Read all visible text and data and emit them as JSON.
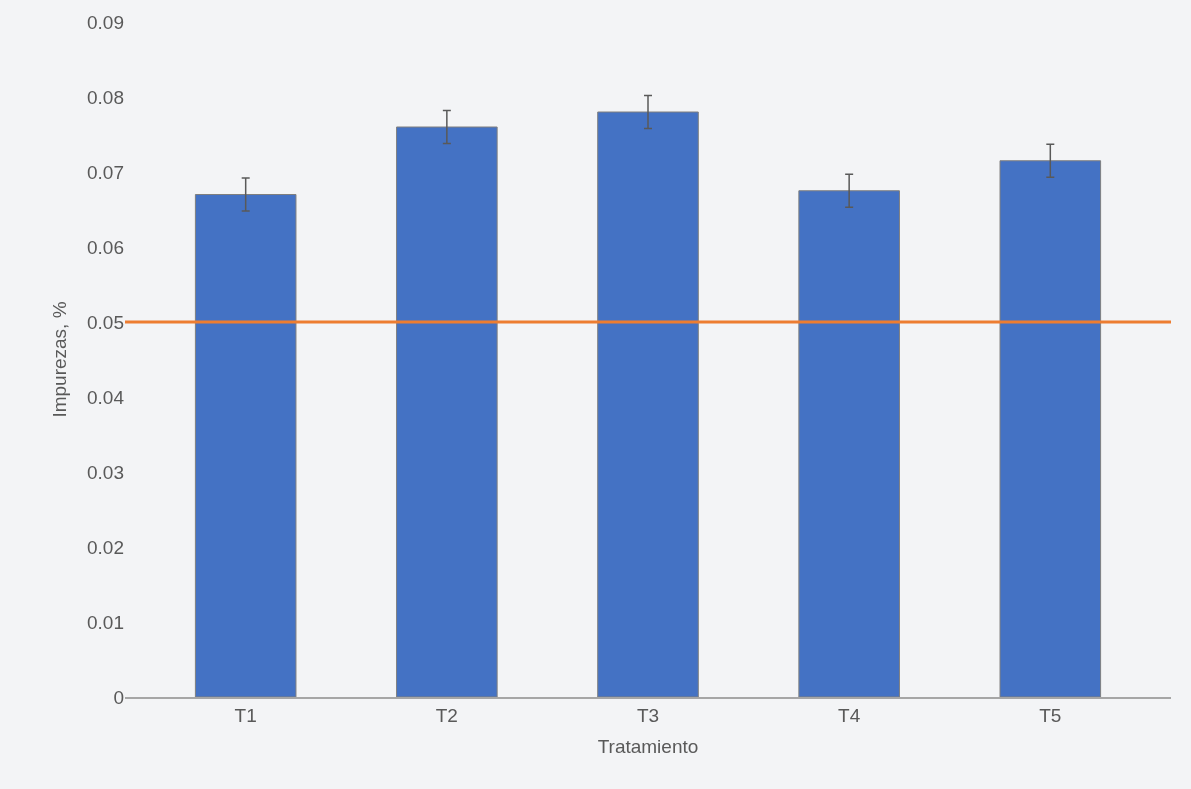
{
  "chart_data": {
    "type": "bar",
    "xlabel": "Tratamiento",
    "ylabel": "Impurezas, %",
    "categories": [
      "T1",
      "T2",
      "T3",
      "T4",
      "T5"
    ],
    "values": [
      0.067,
      0.076,
      0.078,
      0.0675,
      0.0715
    ],
    "errors": [
      0.0022,
      0.0022,
      0.0022,
      0.0022,
      0.0022
    ],
    "color": "#4472c4",
    "ylim": [
      0,
      0.09
    ],
    "yticks": [
      0,
      0.01,
      0.02,
      0.03,
      0.04,
      0.05,
      0.06,
      0.07,
      0.08,
      0.09
    ],
    "ref_lines": [
      {
        "axis": "y",
        "value": 0.05,
        "color": "#ed7d31"
      }
    ],
    "grid": false,
    "legend": false
  }
}
